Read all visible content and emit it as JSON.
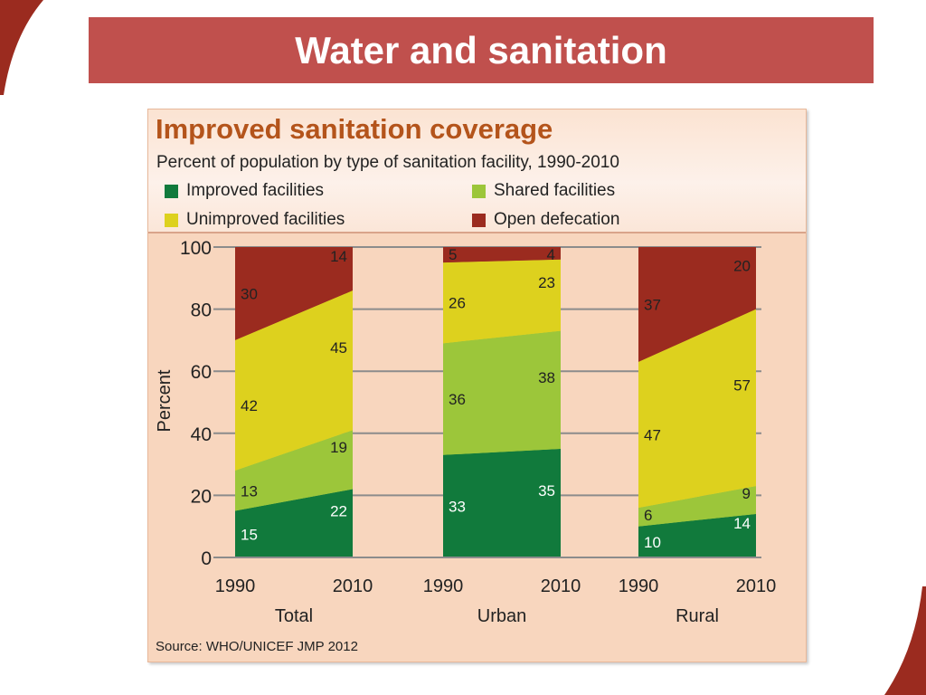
{
  "slide_title": "Water and sanitation",
  "colors": {
    "title_bar": "#c0504d",
    "improved": "#117a3c",
    "shared": "#9cc63a",
    "unimproved": "#ddd11e",
    "open": "#9b2b1f",
    "chart_title": "#b4541b",
    "panel": "#f8d6be"
  },
  "source": "Source:  WHO/UNICEF JMP 2012",
  "chart_data": {
    "type": "bar",
    "stacked": true,
    "title": "Improved sanitation coverage",
    "subtitle": "Percent of population by type of sanitation facility, 1990-2010",
    "ylabel": "Percent",
    "ylim": [
      0,
      100
    ],
    "yticks": [
      0,
      20,
      40,
      60,
      80,
      100
    ],
    "grid": true,
    "legend": [
      {
        "name": "Improved facilities",
        "color": "#117a3c"
      },
      {
        "name": "Shared facilities",
        "color": "#9cc63a"
      },
      {
        "name": "Unimproved facilities",
        "color": "#ddd11e"
      },
      {
        "name": "Open defecation",
        "color": "#9b2b1f"
      }
    ],
    "groups": [
      {
        "label": "Total",
        "years": [
          "1990",
          "2010"
        ],
        "values": {
          "improved": [
            15,
            22
          ],
          "shared": [
            13,
            19
          ],
          "unimproved": [
            42,
            45
          ],
          "open": [
            30,
            14
          ]
        }
      },
      {
        "label": "Urban",
        "years": [
          "1990",
          "2010"
        ],
        "values": {
          "improved": [
            33,
            35
          ],
          "shared": [
            36,
            38
          ],
          "unimproved": [
            26,
            23
          ],
          "open": [
            5,
            4
          ]
        }
      },
      {
        "label": "Rural",
        "years": [
          "1990",
          "2010"
        ],
        "values": {
          "improved": [
            10,
            14
          ],
          "shared": [
            6,
            9
          ],
          "unimproved": [
            47,
            57
          ],
          "open": [
            37,
            20
          ]
        }
      }
    ]
  }
}
